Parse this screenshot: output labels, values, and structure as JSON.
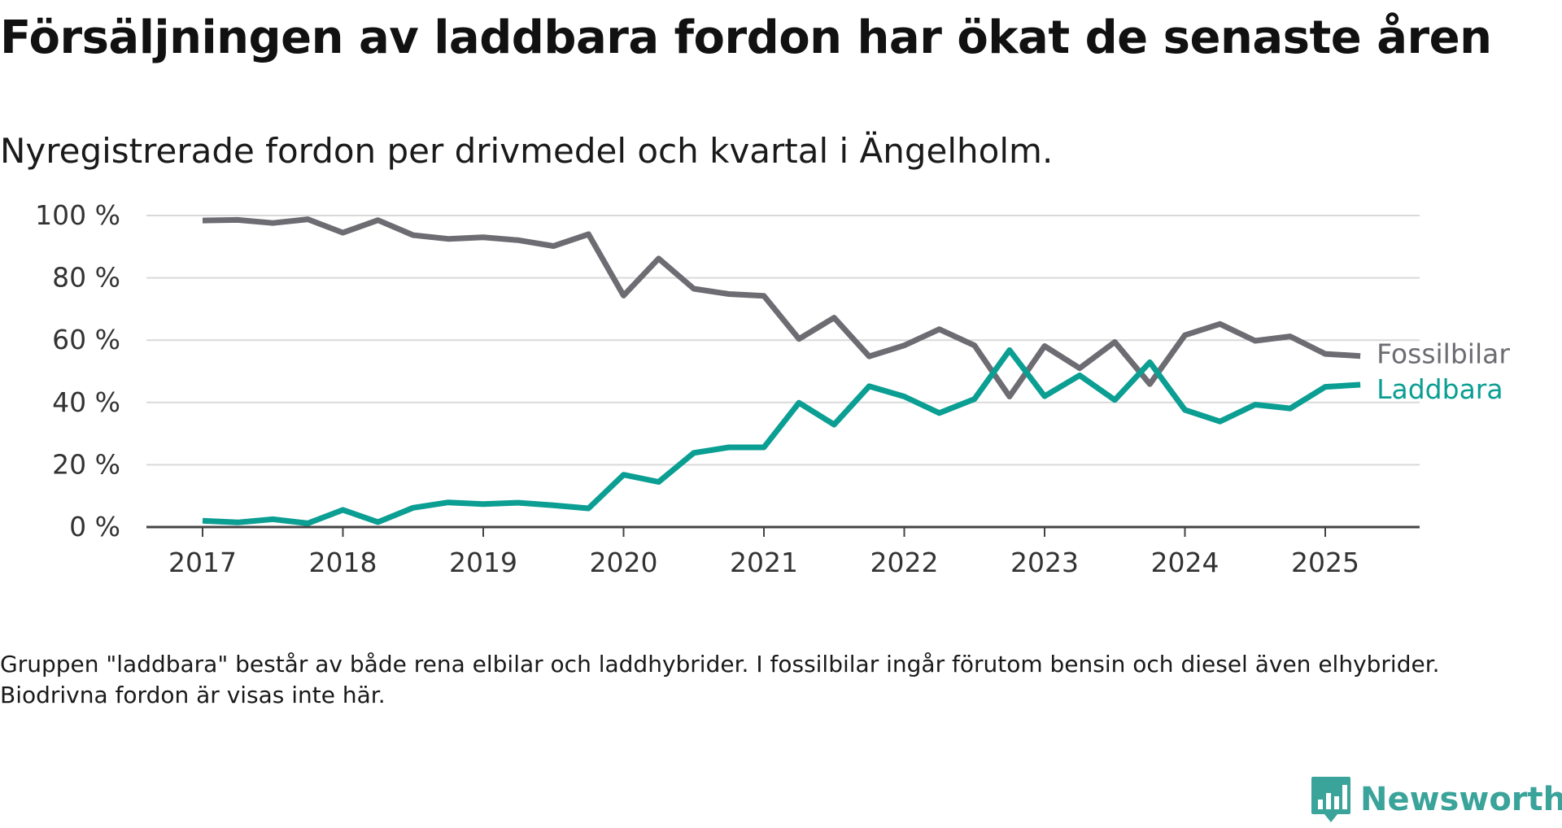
{
  "title": "Försäljningen av laddbara fordon har ökat de senaste åren",
  "subtitle": "Nyregistrerade fordon per drivmedel och kvartal i Ängelholm.",
  "footnote": "Gruppen \"laddbara\" består av både rena elbilar och laddhybrider. I fossilbilar ingår förutom bensin och diesel även elhybrider. Biodrivna fordon är visas inte här.",
  "brand": {
    "name": "Newsworthy",
    "color": "#3aa39a"
  },
  "chart_data": {
    "type": "line",
    "x_axis_ticks": [
      "2017",
      "2018",
      "2019",
      "2020",
      "2021",
      "2022",
      "2023",
      "2024",
      "2025"
    ],
    "y_axis_ticks": [
      "0 %",
      "20 %",
      "40 %",
      "60 %",
      "80 %",
      "100 %"
    ],
    "ylim": [
      0,
      100
    ],
    "grid": "horizontal",
    "legend": "direct labels at line ends",
    "x": [
      "2017 Q1",
      "2017 Q2",
      "2017 Q3",
      "2017 Q4",
      "2018 Q1",
      "2018 Q2",
      "2018 Q3",
      "2018 Q4",
      "2019 Q1",
      "2019 Q2",
      "2019 Q3",
      "2019 Q4",
      "2020 Q1",
      "2020 Q2",
      "2020 Q3",
      "2020 Q4",
      "2021 Q1",
      "2021 Q2",
      "2021 Q3",
      "2021 Q4",
      "2022 Q1",
      "2022 Q2",
      "2022 Q3",
      "2022 Q4",
      "2023 Q1",
      "2023 Q2",
      "2023 Q3",
      "2023 Q4",
      "2024 Q1",
      "2024 Q2",
      "2024 Q3",
      "2024 Q4",
      "2025 Q1",
      "2025 Q2"
    ],
    "series": [
      {
        "name": "Fossilbilar",
        "color": "#6d6c72",
        "values": [
          98.4,
          98.6,
          97.6,
          98.8,
          94.5,
          98.5,
          93.7,
          92.5,
          93.0,
          92.1,
          90.2,
          94.0,
          74.3,
          86.2,
          76.5,
          74.8,
          74.2,
          60.4,
          67.2,
          54.8,
          58.3,
          63.5,
          58.3,
          41.9,
          58.1,
          51.0,
          59.4,
          45.9,
          61.6,
          65.2,
          59.8,
          61.2,
          55.6,
          54.9
        ]
      },
      {
        "name": "Laddbara",
        "color": "#0b9e93",
        "values": [
          2.0,
          1.5,
          2.5,
          1.2,
          5.5,
          1.6,
          6.2,
          7.9,
          7.4,
          7.8,
          7.0,
          6.0,
          16.8,
          14.5,
          23.8,
          25.6,
          25.6,
          39.9,
          32.9,
          45.2,
          41.9,
          36.6,
          41.1,
          56.8,
          42.0,
          48.7,
          40.8,
          52.9,
          37.6,
          33.9,
          39.3,
          38.1,
          45.0,
          45.7
        ]
      }
    ]
  }
}
